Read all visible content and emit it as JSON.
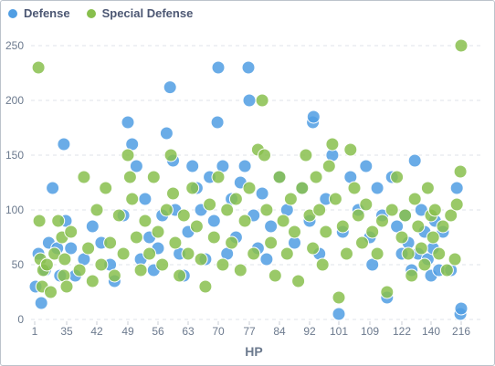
{
  "chart_data": {
    "type": "scatter",
    "xlabel": "HP",
    "ylabel": "",
    "ylim": [
      0,
      250
    ],
    "x_ticks": [
      "1",
      "35",
      "42",
      "49",
      "56",
      "63",
      "70",
      "77",
      "84",
      "92",
      "101",
      "109",
      "122",
      "140",
      "216"
    ],
    "y_ticks": [
      "0",
      "50",
      "100",
      "150",
      "200",
      "250"
    ],
    "legend_position": "top-left",
    "grid": "horizontal dashed",
    "series": [
      {
        "name": "Defense",
        "color": "#509ee3",
        "points": [
          {
            "x": 2,
            "y": 30
          },
          {
            "x": 5,
            "y": 60
          },
          {
            "x": 8,
            "y": 15
          },
          {
            "x": 12,
            "y": 45
          },
          {
            "x": 16,
            "y": 70
          },
          {
            "x": 20,
            "y": 120
          },
          {
            "x": 25,
            "y": 65
          },
          {
            "x": 28,
            "y": 40
          },
          {
            "x": 32,
            "y": 160
          },
          {
            "x": 34,
            "y": 90
          },
          {
            "x": 36,
            "y": 65
          },
          {
            "x": 37,
            "y": 40
          },
          {
            "x": 39,
            "y": 55
          },
          {
            "x": 41,
            "y": 85
          },
          {
            "x": 43,
            "y": 70
          },
          {
            "x": 45,
            "y": 50
          },
          {
            "x": 46,
            "y": 35
          },
          {
            "x": 48,
            "y": 95
          },
          {
            "x": 49,
            "y": 180
          },
          {
            "x": 50,
            "y": 160
          },
          {
            "x": 51,
            "y": 140
          },
          {
            "x": 52,
            "y": 55
          },
          {
            "x": 53,
            "y": 110
          },
          {
            "x": 54,
            "y": 75
          },
          {
            "x": 55,
            "y": 45
          },
          {
            "x": 56,
            "y": 65
          },
          {
            "x": 57,
            "y": 95
          },
          {
            "x": 58,
            "y": 170
          },
          {
            "x": 58.8,
            "y": 212
          },
          {
            "x": 59.5,
            "y": 145
          },
          {
            "x": 60,
            "y": 100
          },
          {
            "x": 61,
            "y": 60
          },
          {
            "x": 62,
            "y": 40
          },
          {
            "x": 63,
            "y": 80
          },
          {
            "x": 64,
            "y": 140
          },
          {
            "x": 65,
            "y": 120
          },
          {
            "x": 66,
            "y": 100
          },
          {
            "x": 67,
            "y": 55
          },
          {
            "x": 68,
            "y": 130
          },
          {
            "x": 69,
            "y": 90
          },
          {
            "x": 69.8,
            "y": 180
          },
          {
            "x": 70,
            "y": 230
          },
          {
            "x": 71,
            "y": 140
          },
          {
            "x": 72,
            "y": 60
          },
          {
            "x": 73,
            "y": 110
          },
          {
            "x": 74,
            "y": 75
          },
          {
            "x": 75,
            "y": 125
          },
          {
            "x": 76,
            "y": 140
          },
          {
            "x": 76.8,
            "y": 230
          },
          {
            "x": 77,
            "y": 200
          },
          {
            "x": 78,
            "y": 95
          },
          {
            "x": 79,
            "y": 65
          },
          {
            "x": 80,
            "y": 115
          },
          {
            "x": 81,
            "y": 55
          },
          {
            "x": 82,
            "y": 85
          },
          {
            "x": 84,
            "y": 130
          },
          {
            "x": 86,
            "y": 100
          },
          {
            "x": 88,
            "y": 70
          },
          {
            "x": 90,
            "y": 120
          },
          {
            "x": 92,
            "y": 90
          },
          {
            "x": 93,
            "y": 180
          },
          {
            "x": 93.2,
            "y": 185
          },
          {
            "x": 95,
            "y": 60
          },
          {
            "x": 97,
            "y": 110
          },
          {
            "x": 99,
            "y": 150
          },
          {
            "x": 101,
            "y": 5
          },
          {
            "x": 102,
            "y": 80
          },
          {
            "x": 104,
            "y": 130
          },
          {
            "x": 106,
            "y": 100
          },
          {
            "x": 108,
            "y": 140
          },
          {
            "x": 109,
            "y": 75
          },
          {
            "x": 110,
            "y": 50
          },
          {
            "x": 112,
            "y": 120
          },
          {
            "x": 114,
            "y": 95
          },
          {
            "x": 116,
            "y": 20
          },
          {
            "x": 118,
            "y": 130
          },
          {
            "x": 120,
            "y": 85
          },
          {
            "x": 122,
            "y": 60
          },
          {
            "x": 124,
            "y": 95
          },
          {
            "x": 126,
            "y": 70
          },
          {
            "x": 128,
            "y": 45
          },
          {
            "x": 130,
            "y": 145
          },
          {
            "x": 132,
            "y": 60
          },
          {
            "x": 134,
            "y": 100
          },
          {
            "x": 136,
            "y": 80
          },
          {
            "x": 138,
            "y": 55
          },
          {
            "x": 140,
            "y": 40
          },
          {
            "x": 145,
            "y": 65
          },
          {
            "x": 150,
            "y": 90
          },
          {
            "x": 160,
            "y": 45
          },
          {
            "x": 170,
            "y": 80
          },
          {
            "x": 190,
            "y": 45
          },
          {
            "x": 205,
            "y": 120
          },
          {
            "x": 214,
            "y": 5
          },
          {
            "x": 216,
            "y": 10
          }
        ]
      },
      {
        "name": "Special Defense",
        "color": "#88bf4d",
        "points": [
          {
            "x": 5,
            "y": 230
          },
          {
            "x": 6,
            "y": 90
          },
          {
            "x": 7,
            "y": 55
          },
          {
            "x": 9,
            "y": 30
          },
          {
            "x": 10,
            "y": 45
          },
          {
            "x": 14,
            "y": 50
          },
          {
            "x": 18,
            "y": 25
          },
          {
            "x": 22,
            "y": 60
          },
          {
            "x": 26,
            "y": 90
          },
          {
            "x": 30,
            "y": 75
          },
          {
            "x": 32,
            "y": 40
          },
          {
            "x": 33,
            "y": 55
          },
          {
            "x": 35,
            "y": 30
          },
          {
            "x": 36,
            "y": 80
          },
          {
            "x": 38,
            "y": 45
          },
          {
            "x": 39,
            "y": 130
          },
          {
            "x": 40,
            "y": 65
          },
          {
            "x": 41,
            "y": 35
          },
          {
            "x": 42,
            "y": 100
          },
          {
            "x": 43,
            "y": 50
          },
          {
            "x": 44,
            "y": 120
          },
          {
            "x": 45,
            "y": 70
          },
          {
            "x": 46,
            "y": 40
          },
          {
            "x": 47,
            "y": 95
          },
          {
            "x": 48,
            "y": 60
          },
          {
            "x": 49,
            "y": 150
          },
          {
            "x": 49.5,
            "y": 130
          },
          {
            "x": 50,
            "y": 110
          },
          {
            "x": 51,
            "y": 75
          },
          {
            "x": 52,
            "y": 45
          },
          {
            "x": 53,
            "y": 90
          },
          {
            "x": 54,
            "y": 60
          },
          {
            "x": 55,
            "y": 130
          },
          {
            "x": 56,
            "y": 80
          },
          {
            "x": 57,
            "y": 50
          },
          {
            "x": 58,
            "y": 100
          },
          {
            "x": 59,
            "y": 150
          },
          {
            "x": 59.5,
            "y": 115
          },
          {
            "x": 60,
            "y": 70
          },
          {
            "x": 61,
            "y": 40
          },
          {
            "x": 62,
            "y": 95
          },
          {
            "x": 63,
            "y": 60
          },
          {
            "x": 64,
            "y": 120
          },
          {
            "x": 65,
            "y": 85
          },
          {
            "x": 66,
            "y": 55
          },
          {
            "x": 67,
            "y": 30
          },
          {
            "x": 68,
            "y": 105
          },
          {
            "x": 69,
            "y": 75
          },
          {
            "x": 70,
            "y": 130
          },
          {
            "x": 71,
            "y": 50
          },
          {
            "x": 72,
            "y": 100
          },
          {
            "x": 73,
            "y": 70
          },
          {
            "x": 74,
            "y": 110
          },
          {
            "x": 75,
            "y": 45
          },
          {
            "x": 76,
            "y": 90
          },
          {
            "x": 77,
            "y": 120
          },
          {
            "x": 78,
            "y": 60
          },
          {
            "x": 79,
            "y": 155
          },
          {
            "x": 80,
            "y": 200
          },
          {
            "x": 80.5,
            "y": 150
          },
          {
            "x": 81,
            "y": 100
          },
          {
            "x": 82,
            "y": 70
          },
          {
            "x": 83,
            "y": 40
          },
          {
            "x": 84,
            "y": 130
          },
          {
            "x": 85,
            "y": 90
          },
          {
            "x": 86,
            "y": 60
          },
          {
            "x": 87,
            "y": 110
          },
          {
            "x": 88,
            "y": 80
          },
          {
            "x": 89,
            "y": 35
          },
          {
            "x": 90,
            "y": 120
          },
          {
            "x": 91,
            "y": 150
          },
          {
            "x": 92,
            "y": 95
          },
          {
            "x": 93,
            "y": 65
          },
          {
            "x": 94,
            "y": 130
          },
          {
            "x": 95,
            "y": 100
          },
          {
            "x": 96,
            "y": 50
          },
          {
            "x": 97,
            "y": 80
          },
          {
            "x": 98,
            "y": 140
          },
          {
            "x": 99,
            "y": 160
          },
          {
            "x": 100,
            "y": 110
          },
          {
            "x": 101,
            "y": 20
          },
          {
            "x": 102,
            "y": 85
          },
          {
            "x": 103,
            "y": 60
          },
          {
            "x": 104,
            "y": 155
          },
          {
            "x": 105,
            "y": 120
          },
          {
            "x": 106,
            "y": 95
          },
          {
            "x": 107,
            "y": 70
          },
          {
            "x": 108,
            "y": 105
          },
          {
            "x": 110,
            "y": 80
          },
          {
            "x": 112,
            "y": 60
          },
          {
            "x": 114,
            "y": 90
          },
          {
            "x": 116,
            "y": 25
          },
          {
            "x": 118,
            "y": 100
          },
          {
            "x": 120,
            "y": 130
          },
          {
            "x": 122,
            "y": 75
          },
          {
            "x": 124,
            "y": 95
          },
          {
            "x": 126,
            "y": 60
          },
          {
            "x": 128,
            "y": 40
          },
          {
            "x": 130,
            "y": 110
          },
          {
            "x": 132,
            "y": 85
          },
          {
            "x": 134,
            "y": 65
          },
          {
            "x": 136,
            "y": 50
          },
          {
            "x": 138,
            "y": 120
          },
          {
            "x": 140,
            "y": 95
          },
          {
            "x": 145,
            "y": 75
          },
          {
            "x": 150,
            "y": 100
          },
          {
            "x": 160,
            "y": 60
          },
          {
            "x": 170,
            "y": 85
          },
          {
            "x": 180,
            "y": 45
          },
          {
            "x": 190,
            "y": 95
          },
          {
            "x": 200,
            "y": 55
          },
          {
            "x": 205,
            "y": 105
          },
          {
            "x": 214,
            "y": 135
          },
          {
            "x": 216,
            "y": 250
          }
        ]
      }
    ]
  }
}
